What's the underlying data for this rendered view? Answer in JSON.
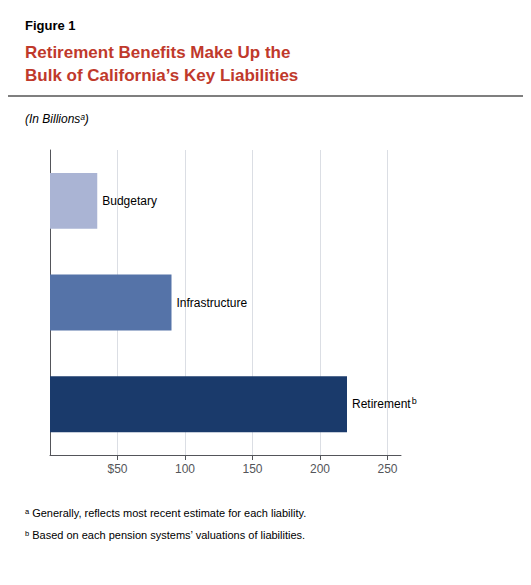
{
  "chart_data": {
    "type": "bar",
    "orientation": "horizontal",
    "figure_label": "Figure 1",
    "title": "Retirement Benefits Make Up the\nBulk of California’s Key Liabilities",
    "title_color": "#c0392b",
    "subtitle": "(In Billionsᵃ)",
    "categories": [
      "Budgetary",
      "Infrastructure",
      "Retirement"
    ],
    "values": [
      35,
      90,
      220
    ],
    "colors": [
      "#aab4d4",
      "#5573a8",
      "#1a3a6b"
    ],
    "annotations": [
      {
        "text": "b",
        "category": "Retirement"
      }
    ],
    "footnotes": [
      "ᵃ Generally, reflects most recent estimate for each liability.",
      "ᵇ Based on each pension systems’ valuations of liabilities."
    ],
    "xlim": [
      0,
      260
    ],
    "xticks": [
      {
        "value": 50,
        "label": "$50"
      },
      100,
      150,
      200,
      250
    ],
    "grid": true,
    "tick_labels": "x"
  }
}
